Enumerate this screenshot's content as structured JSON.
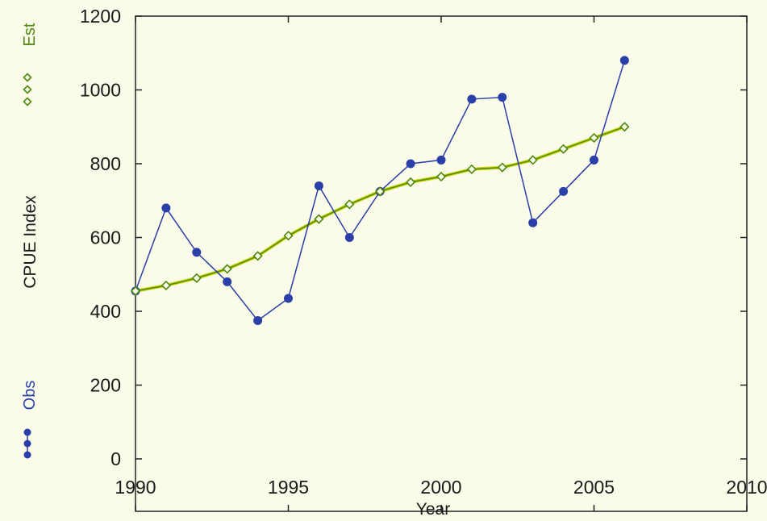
{
  "chart_data": {
    "type": "line",
    "xlabel": "Year",
    "ylabel": "CPUE Index",
    "xlim": [
      1990,
      2010
    ],
    "ylim": [
      0,
      1200
    ],
    "xticks": [
      1990,
      1995,
      2000,
      2005,
      2010
    ],
    "yticks": [
      0,
      200,
      400,
      600,
      800,
      1000,
      1200
    ],
    "grid": false,
    "x": [
      1990,
      1991,
      1992,
      1993,
      1994,
      1995,
      1996,
      1997,
      1998,
      1999,
      2000,
      2001,
      2002,
      2003,
      2004,
      2005,
      2006
    ],
    "series": [
      {
        "name": "Obs",
        "color": "#2b3fa8",
        "marker": "filled-circle",
        "values": [
          455,
          680,
          560,
          480,
          375,
          435,
          740,
          600,
          725,
          800,
          810,
          975,
          980,
          640,
          725,
          810,
          1080
        ]
      },
      {
        "name": "Est",
        "color": "#4f8a10",
        "marker": "diamond",
        "values": [
          455,
          470,
          490,
          515,
          550,
          605,
          650,
          690,
          725,
          750,
          765,
          785,
          790,
          810,
          840,
          870,
          900
        ]
      }
    ],
    "legend_placement": "left-vertical",
    "background": "#fbfbe9",
    "fit_line_color": "#c8d400"
  }
}
